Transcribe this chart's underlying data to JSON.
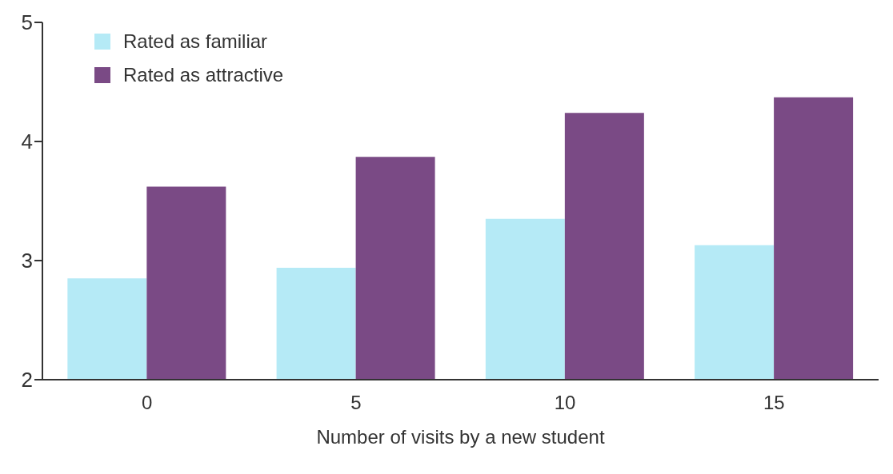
{
  "chart_data": {
    "type": "bar",
    "xlabel": "Number of visits by a new student",
    "categories": [
      "0",
      "5",
      "10",
      "15"
    ],
    "series": [
      {
        "name": "Rated as familiar",
        "color": "#b5eaf6",
        "values": [
          2.85,
          2.94,
          3.35,
          3.13
        ]
      },
      {
        "name": "Rated as attractive",
        "color": "#7a4a85",
        "values": [
          3.62,
          3.87,
          4.24,
          4.37
        ]
      }
    ],
    "ylim": [
      2,
      5
    ],
    "yticks": [
      2,
      3,
      4,
      5
    ],
    "grid": false,
    "legend": "top left"
  }
}
